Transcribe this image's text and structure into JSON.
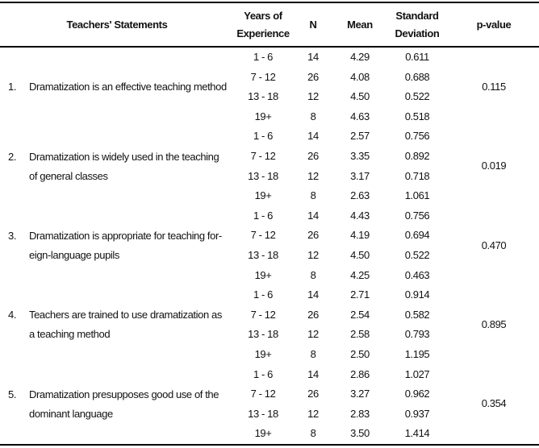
{
  "table": {
    "header": {
      "statements": "Teachers' Statements",
      "experience_line1": "Years of",
      "experience_line2": "Experience",
      "n": "N",
      "mean": "Mean",
      "sd_line1": "Standard",
      "sd_line2": "Deviation",
      "p_value": "p-value"
    },
    "groups": [
      {
        "number": "1.",
        "statement_lines": [
          "Dramatization is an effective teaching method"
        ],
        "p_value": "0.115",
        "rows": [
          {
            "experience": "1 - 6",
            "n": "14",
            "mean": "4.29",
            "sd": "0.611"
          },
          {
            "experience": "7 - 12",
            "n": "26",
            "mean": "4.08",
            "sd": "0.688"
          },
          {
            "experience": "13 - 18",
            "n": "12",
            "mean": "4.50",
            "sd": "0.522"
          },
          {
            "experience": "19+",
            "n": "8",
            "mean": "4.63",
            "sd": "0.518"
          }
        ]
      },
      {
        "number": "2.",
        "statement_lines": [
          "Dramatization is widely used in the teaching",
          "of general classes"
        ],
        "p_value": "0.019",
        "rows": [
          {
            "experience": "1 - 6",
            "n": "14",
            "mean": "2.57",
            "sd": "0.756"
          },
          {
            "experience": "7 - 12",
            "n": "26",
            "mean": "3.35",
            "sd": "0.892"
          },
          {
            "experience": "13 - 18",
            "n": "12",
            "mean": "3.17",
            "sd": "0.718"
          },
          {
            "experience": "19+",
            "n": "8",
            "mean": "2.63",
            "sd": "1.061"
          }
        ]
      },
      {
        "number": "3.",
        "statement_lines": [
          "Dramatization is appropriate for teaching for-",
          "eign-language pupils"
        ],
        "p_value": "0.470",
        "rows": [
          {
            "experience": "1 - 6",
            "n": "14",
            "mean": "4.43",
            "sd": "0.756"
          },
          {
            "experience": "7 - 12",
            "n": "26",
            "mean": "4.19",
            "sd": "0.694"
          },
          {
            "experience": "13 - 18",
            "n": "12",
            "mean": "4.50",
            "sd": "0.522"
          },
          {
            "experience": "19+",
            "n": "8",
            "mean": "4.25",
            "sd": "0.463"
          }
        ]
      },
      {
        "number": "4.",
        "statement_lines": [
          "Teachers are trained to use dramatization as",
          "a teaching method"
        ],
        "p_value": "0.895",
        "rows": [
          {
            "experience": "1 - 6",
            "n": "14",
            "mean": "2.71",
            "sd": "0.914"
          },
          {
            "experience": "7 - 12",
            "n": "26",
            "mean": "2.54",
            "sd": "0.582"
          },
          {
            "experience": "13 - 18",
            "n": "12",
            "mean": "2.58",
            "sd": "0.793"
          },
          {
            "experience": "19+",
            "n": "8",
            "mean": "2.50",
            "sd": "1.195"
          }
        ]
      },
      {
        "number": "5.",
        "statement_lines": [
          "Dramatization presupposes good use of the",
          "dominant language"
        ],
        "p_value": "0.354",
        "rows": [
          {
            "experience": "1 - 6",
            "n": "14",
            "mean": "2.86",
            "sd": "1.027"
          },
          {
            "experience": "7 - 12",
            "n": "26",
            "mean": "3.27",
            "sd": "0.962"
          },
          {
            "experience": "13 - 18",
            "n": "12",
            "mean": "2.83",
            "sd": "0.937"
          },
          {
            "experience": "19+",
            "n": "8",
            "mean": "3.50",
            "sd": "1.414"
          }
        ]
      }
    ]
  },
  "colors": {
    "text": "#111111",
    "border": "#000000",
    "background": "#ffffff"
  }
}
